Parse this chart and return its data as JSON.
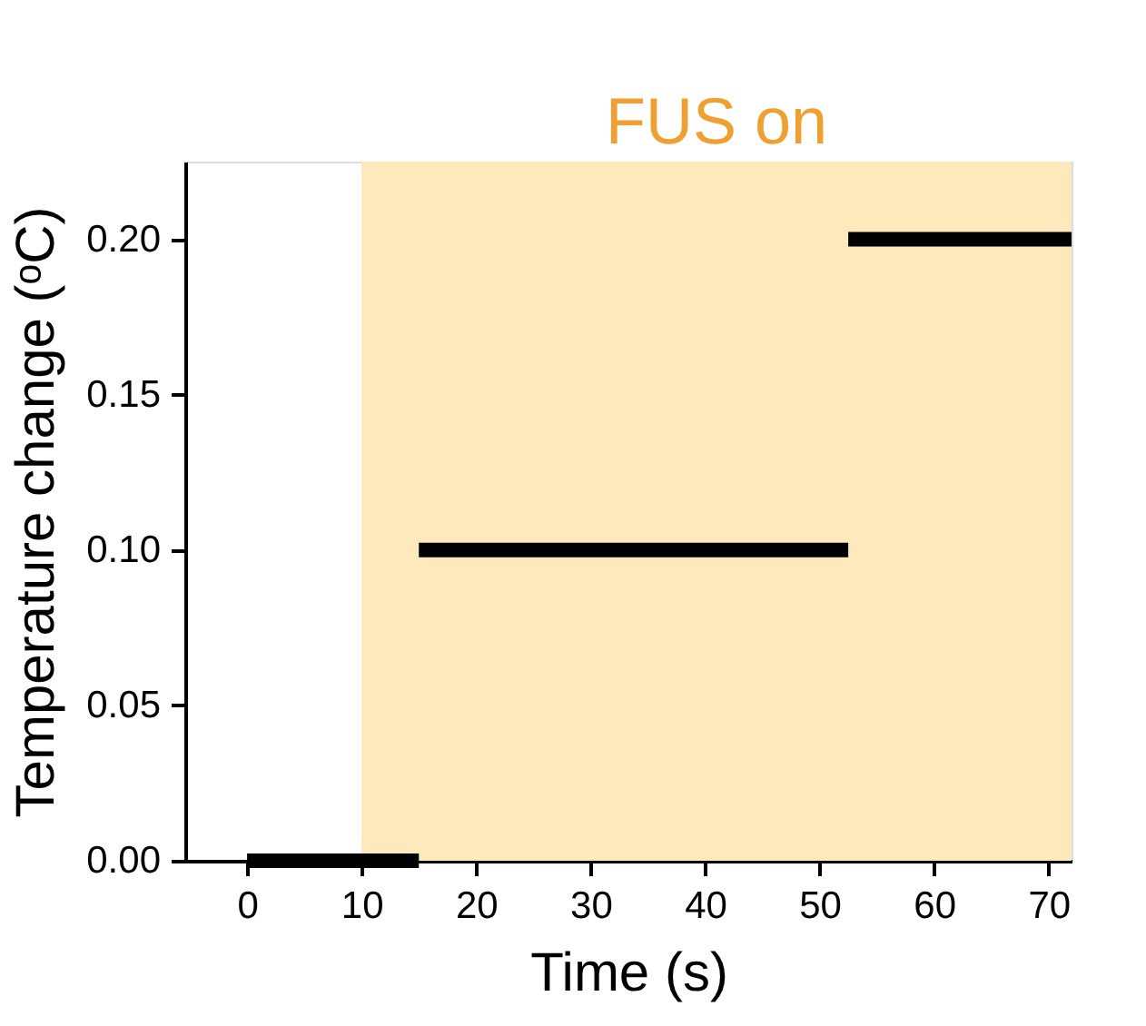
{
  "chart_data": {
    "type": "line",
    "xlabel": "Time (s)",
    "ylabel": "Temperature change (ᵒC)",
    "series": [
      {
        "color": "#000000",
        "x": [
          0,
          15
        ],
        "values": [
          0,
          0
        ]
      },
      {
        "color": "#000000",
        "x": [
          15,
          52.5
        ],
        "values": [
          0.1,
          0.1
        ]
      },
      {
        "color": "#000000",
        "x": [
          52.5,
          72
        ],
        "values": [
          0.2,
          0.2
        ]
      }
    ],
    "xlim": [
      -5.4,
      72
    ],
    "xticks": [
      0,
      10,
      20,
      30,
      40,
      50,
      60,
      70
    ],
    "ylim": [
      0,
      0.225
    ],
    "yticks": [
      {
        "value": 0,
        "label": "0.00"
      },
      {
        "value": 0.05,
        "label": "0.05"
      },
      {
        "value": 0.1,
        "label": "0.10"
      },
      {
        "value": 0.15,
        "label": "0.15"
      },
      {
        "value": 0.2,
        "label": "0.20"
      }
    ],
    "bands": [
      {
        "axis": "x",
        "from": 10,
        "to": 72,
        "label": "FUS on",
        "color": "#fde9bb"
      }
    ],
    "grid": false,
    "marker": "none",
    "line_style": "solid"
  }
}
